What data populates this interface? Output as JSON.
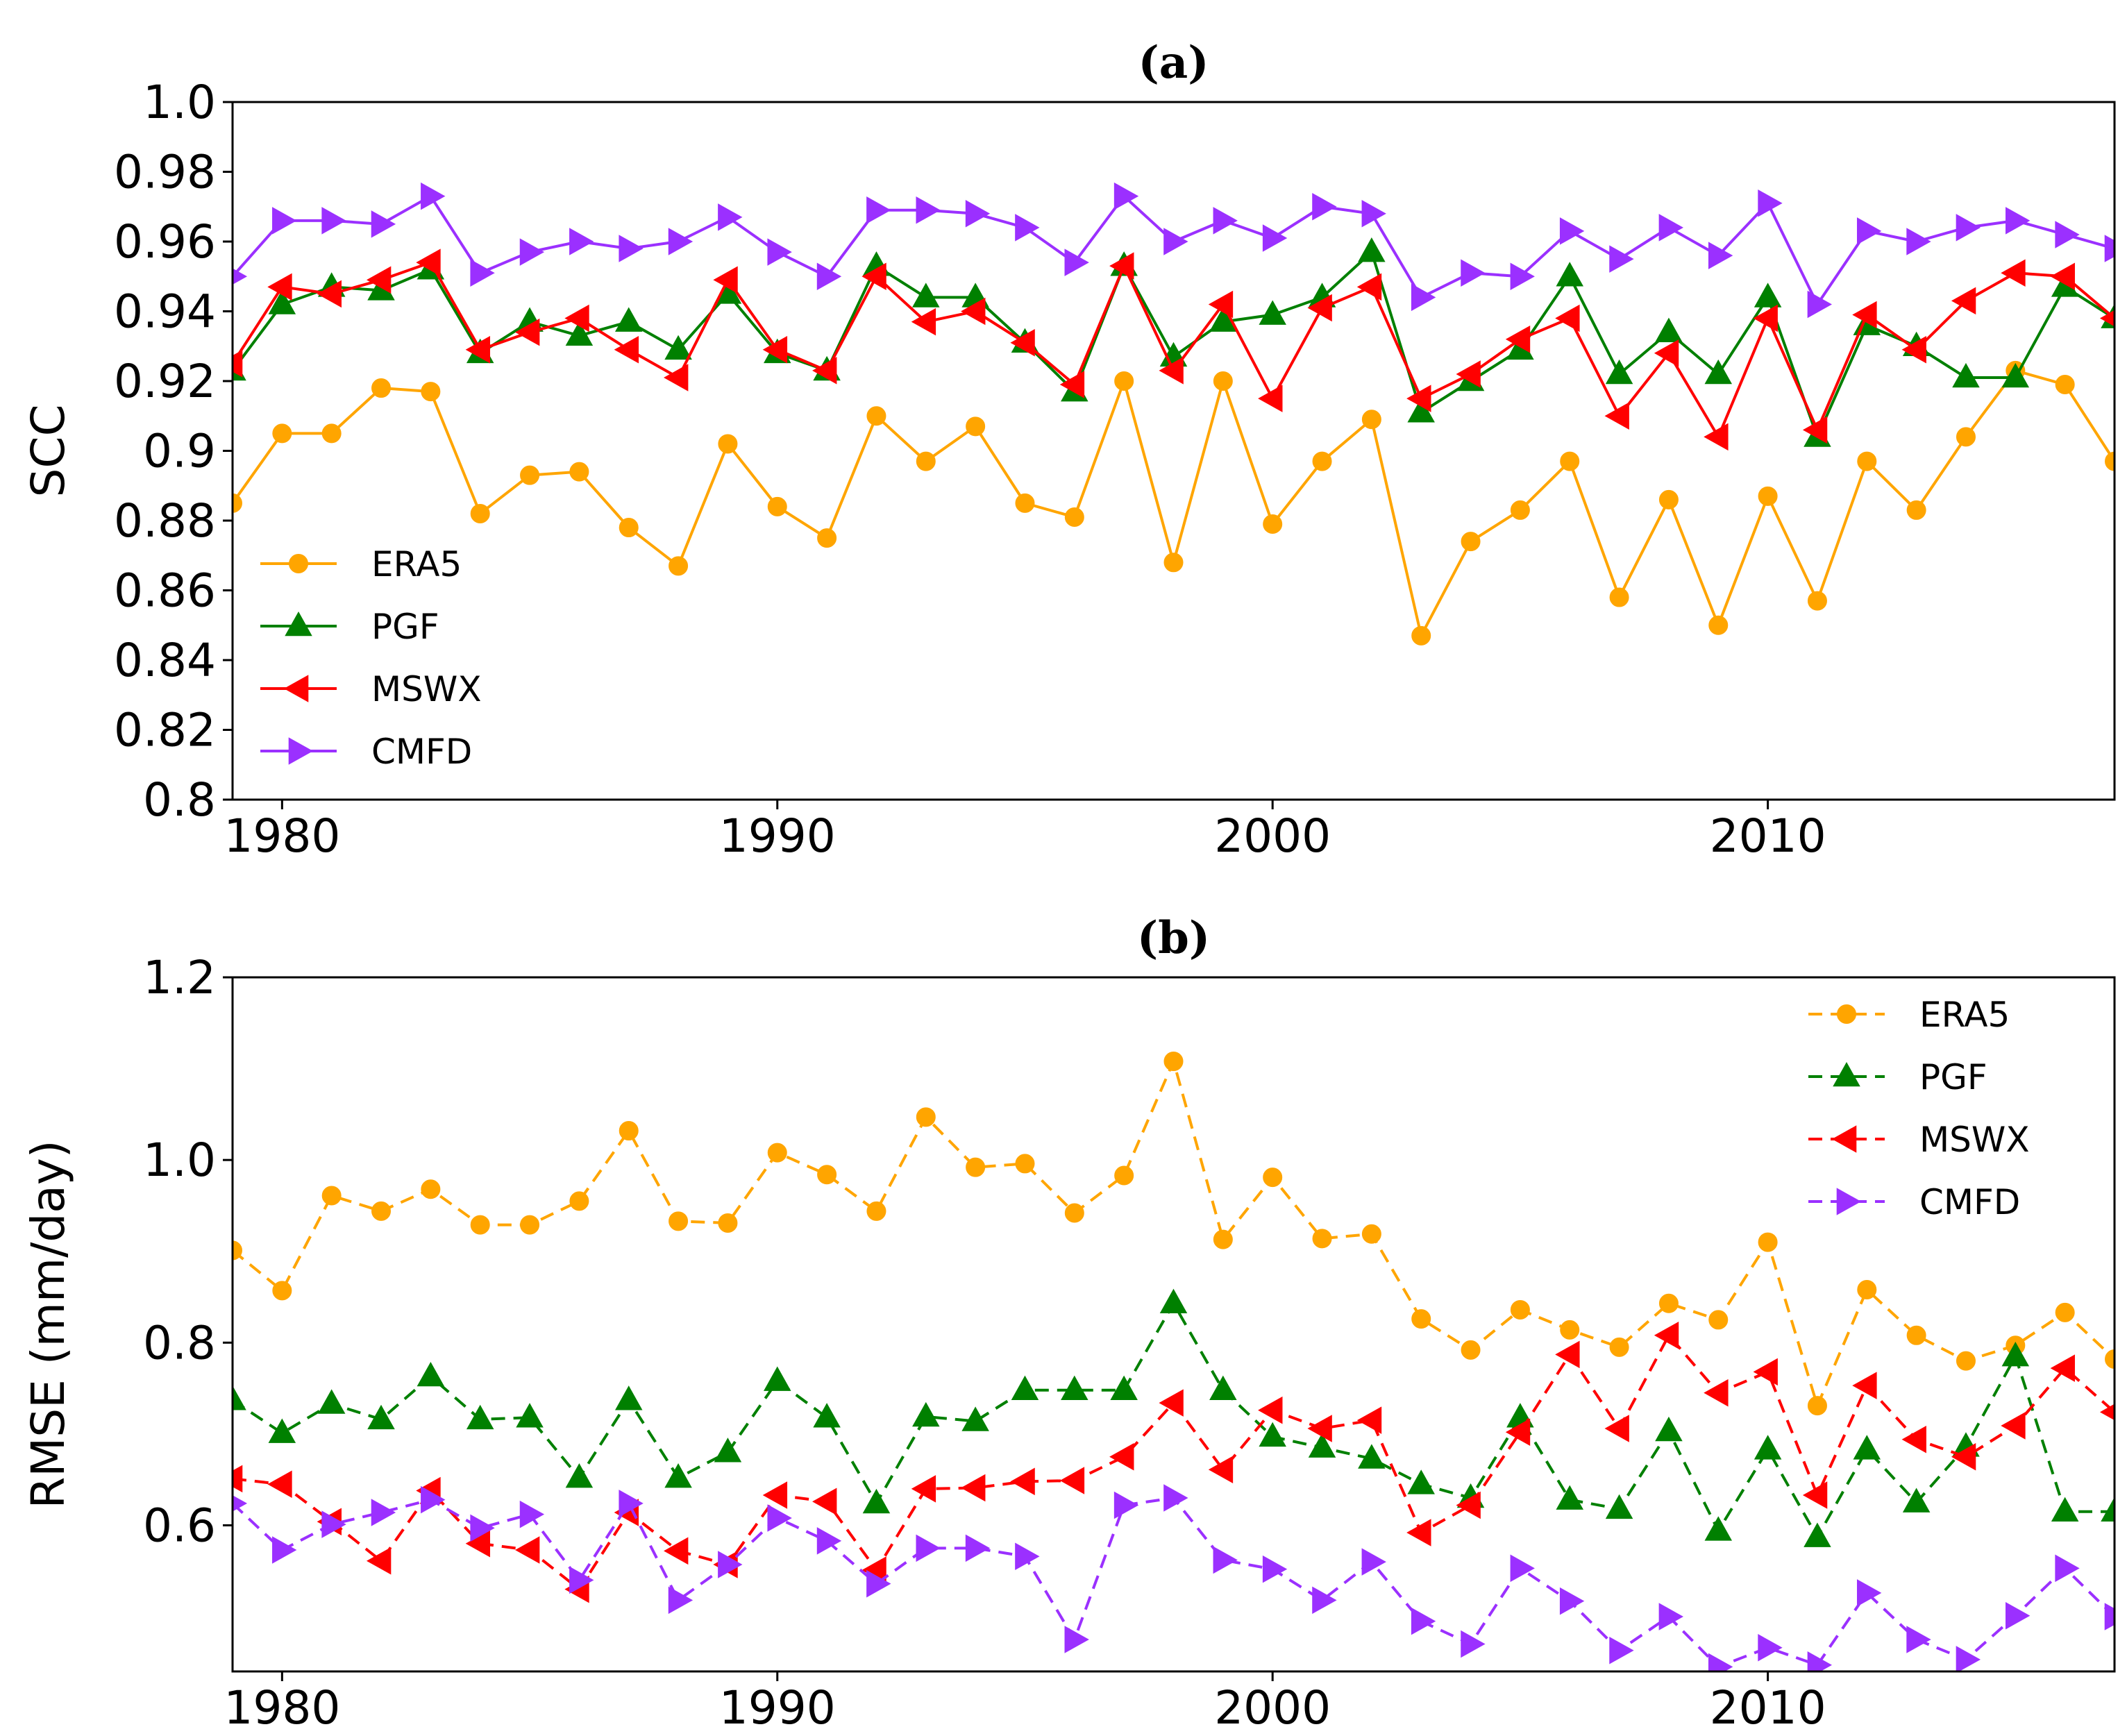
{
  "colors": {
    "ERA5": "#FFA500",
    "PGF": "#008000",
    "MSWX": "#FF0000",
    "CMFD": "#9B30FF"
  },
  "chart_data": [
    {
      "type": "line",
      "title": "(a)",
      "xlabel": "",
      "ylabel": "SCC",
      "xlim": [
        1979,
        2017
      ],
      "ylim": [
        0.8,
        1.0
      ],
      "line_style": "solid",
      "legend_position": "lower-left",
      "xticks": [
        1980,
        1990,
        2000,
        2010
      ],
      "xtick_labels": [
        "1980",
        "1990",
        "2000",
        "2010"
      ],
      "yticks": [
        0.8,
        0.82,
        0.84,
        0.86,
        0.88,
        0.9,
        0.92,
        0.94,
        0.96,
        0.98,
        1.0
      ],
      "ytick_labels": [
        "0.8",
        "0.82",
        "0.84",
        "0.86",
        "0.88",
        "0.9",
        "0.92",
        "0.94",
        "0.96",
        "0.98",
        "1.0"
      ],
      "x": [
        1979,
        1980,
        1981,
        1982,
        1983,
        1984,
        1985,
        1986,
        1987,
        1988,
        1989,
        1990,
        1991,
        1992,
        1993,
        1994,
        1995,
        1996,
        1997,
        1998,
        1999,
        2000,
        2001,
        2002,
        2003,
        2004,
        2005,
        2006,
        2007,
        2008,
        2009,
        2010,
        2011,
        2012,
        2013,
        2014,
        2015,
        2016,
        2017
      ],
      "series": [
        {
          "name": "ERA5",
          "marker": "circle",
          "values": [
            0.885,
            0.905,
            0.905,
            0.918,
            0.917,
            0.882,
            0.893,
            0.894,
            0.878,
            0.867,
            0.902,
            0.884,
            0.875,
            0.91,
            0.897,
            0.907,
            0.885,
            0.881,
            0.92,
            0.868,
            0.92,
            0.879,
            0.897,
            0.909,
            0.847,
            0.874,
            0.883,
            0.897,
            0.858,
            0.886,
            0.85,
            0.887,
            0.857,
            0.897,
            0.883,
            0.904,
            0.923,
            0.919,
            0.897
          ]
        },
        {
          "name": "PGF",
          "marker": "triangle-up",
          "values": [
            0.923,
            0.942,
            0.947,
            0.946,
            0.952,
            0.928,
            0.937,
            0.933,
            0.937,
            0.929,
            0.945,
            0.928,
            0.923,
            0.953,
            0.944,
            0.944,
            0.931,
            0.917,
            0.953,
            0.927,
            0.937,
            0.939,
            0.944,
            0.957,
            0.911,
            0.92,
            0.929,
            0.95,
            0.922,
            0.934,
            0.922,
            0.944,
            0.904,
            0.936,
            0.93,
            0.921,
            0.921,
            0.947,
            0.938
          ]
        },
        {
          "name": "MSWX",
          "marker": "triangle-left",
          "values": [
            0.925,
            0.947,
            0.945,
            0.949,
            0.954,
            0.929,
            0.934,
            0.938,
            0.929,
            0.921,
            0.949,
            0.929,
            0.923,
            0.95,
            0.937,
            0.94,
            0.931,
            0.919,
            0.953,
            0.923,
            0.942,
            0.915,
            0.941,
            0.947,
            0.915,
            0.922,
            0.932,
            0.938,
            0.91,
            0.928,
            0.904,
            0.938,
            0.906,
            0.939,
            0.929,
            0.943,
            0.951,
            0.95,
            0.938
          ]
        },
        {
          "name": "CMFD",
          "marker": "triangle-right",
          "values": [
            0.95,
            0.966,
            0.966,
            0.965,
            0.973,
            0.951,
            0.957,
            0.96,
            0.958,
            0.96,
            0.967,
            0.957,
            0.95,
            0.969,
            0.969,
            0.968,
            0.964,
            0.954,
            0.973,
            0.96,
            0.966,
            0.961,
            0.97,
            0.968,
            0.944,
            0.951,
            0.95,
            0.963,
            0.955,
            0.964,
            0.956,
            0.971,
            0.942,
            0.963,
            0.96,
            0.964,
            0.966,
            0.962,
            0.958
          ]
        }
      ]
    },
    {
      "type": "line",
      "title": "(b)",
      "xlabel": "",
      "ylabel": "RMSE (mm/day)",
      "xlim": [
        1979,
        2017
      ],
      "ylim": [
        0.44,
        1.2
      ],
      "line_style": "dashed",
      "legend_position": "upper-right",
      "xticks": [
        1980,
        1990,
        2000,
        2010
      ],
      "xtick_labels": [
        "1980",
        "1990",
        "2000",
        "2010"
      ],
      "yticks": [
        0.6,
        0.8,
        1.0,
        1.2
      ],
      "ytick_labels": [
        "0.6",
        "0.8",
        "1.0",
        "1.2"
      ],
      "x": [
        1979,
        1980,
        1981,
        1982,
        1983,
        1984,
        1985,
        1986,
        1987,
        1988,
        1989,
        1990,
        1991,
        1992,
        1993,
        1994,
        1995,
        1996,
        1997,
        1998,
        1999,
        2000,
        2001,
        2002,
        2003,
        2004,
        2005,
        2006,
        2007,
        2008,
        2009,
        2010,
        2011,
        2012,
        2013,
        2014,
        2015,
        2016,
        2017
      ],
      "series": [
        {
          "name": "ERA5",
          "marker": "circle",
          "values": [
            0.901,
            0.857,
            0.961,
            0.944,
            0.968,
            0.929,
            0.929,
            0.955,
            1.032,
            0.933,
            0.931,
            1.008,
            0.984,
            0.944,
            1.047,
            0.992,
            0.996,
            0.942,
            0.983,
            1.108,
            0.913,
            0.981,
            0.914,
            0.919,
            0.826,
            0.792,
            0.836,
            0.814,
            0.795,
            0.843,
            0.825,
            0.91,
            0.731,
            0.858,
            0.808,
            0.78,
            0.797,
            0.833,
            0.782
          ]
        },
        {
          "name": "PGF",
          "marker": "triangle-up",
          "values": [
            0.737,
            0.701,
            0.733,
            0.716,
            0.763,
            0.716,
            0.718,
            0.652,
            0.737,
            0.652,
            0.68,
            0.758,
            0.718,
            0.624,
            0.719,
            0.714,
            0.748,
            0.748,
            0.748,
            0.843,
            0.748,
            0.697,
            0.685,
            0.673,
            0.645,
            0.63,
            0.718,
            0.628,
            0.618,
            0.703,
            0.594,
            0.683,
            0.587,
            0.683,
            0.625,
            0.686,
            0.785,
            0.615,
            0.615
          ]
        },
        {
          "name": "MSWX",
          "marker": "triangle-left",
          "values": [
            0.651,
            0.645,
            0.604,
            0.561,
            0.638,
            0.58,
            0.573,
            0.53,
            0.614,
            0.572,
            0.557,
            0.633,
            0.626,
            0.551,
            0.64,
            0.641,
            0.648,
            0.649,
            0.675,
            0.734,
            0.661,
            0.726,
            0.706,
            0.715,
            0.592,
            0.622,
            0.702,
            0.787,
            0.706,
            0.808,
            0.745,
            0.768,
            0.633,
            0.753,
            0.694,
            0.675,
            0.709,
            0.772,
            0.724
          ]
        },
        {
          "name": "CMFD",
          "marker": "triangle-right",
          "values": [
            0.624,
            0.573,
            0.601,
            0.614,
            0.628,
            0.597,
            0.612,
            0.54,
            0.624,
            0.518,
            0.557,
            0.608,
            0.583,
            0.536,
            0.575,
            0.575,
            0.566,
            0.475,
            0.622,
            0.63,
            0.562,
            0.552,
            0.518,
            0.56,
            0.495,
            0.47,
            0.553,
            0.517,
            0.463,
            0.5,
            0.445,
            0.466,
            0.447,
            0.526,
            0.475,
            0.453,
            0.501,
            0.553,
            0.5
          ]
        }
      ]
    }
  ]
}
